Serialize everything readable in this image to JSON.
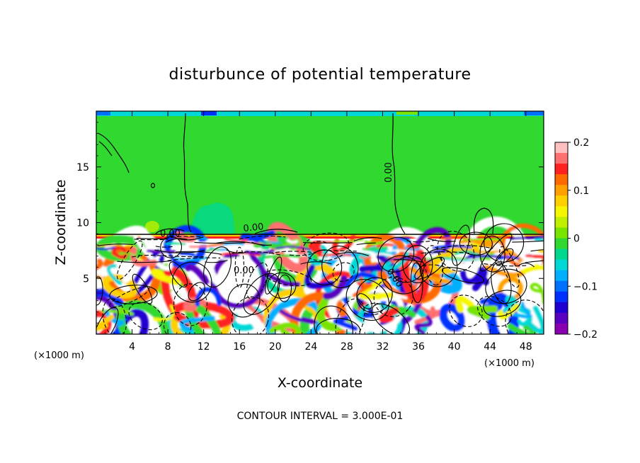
{
  "chart_data": {
    "type": "heatmap",
    "title": "disturbunce of potential temperature",
    "xlabel": "X-coordinate",
    "ylabel": "Z-coordinate",
    "x_unit": "(×1000 m)",
    "z_unit": "(×1000 m)",
    "xlim": [
      0,
      50
    ],
    "ylim": [
      0,
      20
    ],
    "x_ticks": [
      "4",
      "8",
      "12",
      "16",
      "20",
      "24",
      "28",
      "32",
      "36",
      "40",
      "44",
      "48"
    ],
    "y_ticks": [
      "5",
      "10",
      "15"
    ],
    "colorbar": {
      "range": [
        -0.2,
        0.2
      ],
      "tick_labels": [
        "0.2",
        "0.1",
        "0",
        "−0.1",
        "−0.2"
      ],
      "colors": [
        "#ffc0c0",
        "#ff7070",
        "#ff2020",
        "#ff6a00",
        "#ffa000",
        "#ffd000",
        "#f6f600",
        "#c0f000",
        "#78e400",
        "#30d830",
        "#00d890",
        "#00d8d8",
        "#00b0ff",
        "#0070ff",
        "#0030ff",
        "#2000d0",
        "#5a00c0",
        "#8a00b0"
      ]
    },
    "contour_labels": [
      "0.00",
      "0.00",
      "0.00",
      "0.00",
      "0.00"
    ],
    "footnote": "CONTOUR INTERVAL = 3.000E-01",
    "grid": false
  }
}
